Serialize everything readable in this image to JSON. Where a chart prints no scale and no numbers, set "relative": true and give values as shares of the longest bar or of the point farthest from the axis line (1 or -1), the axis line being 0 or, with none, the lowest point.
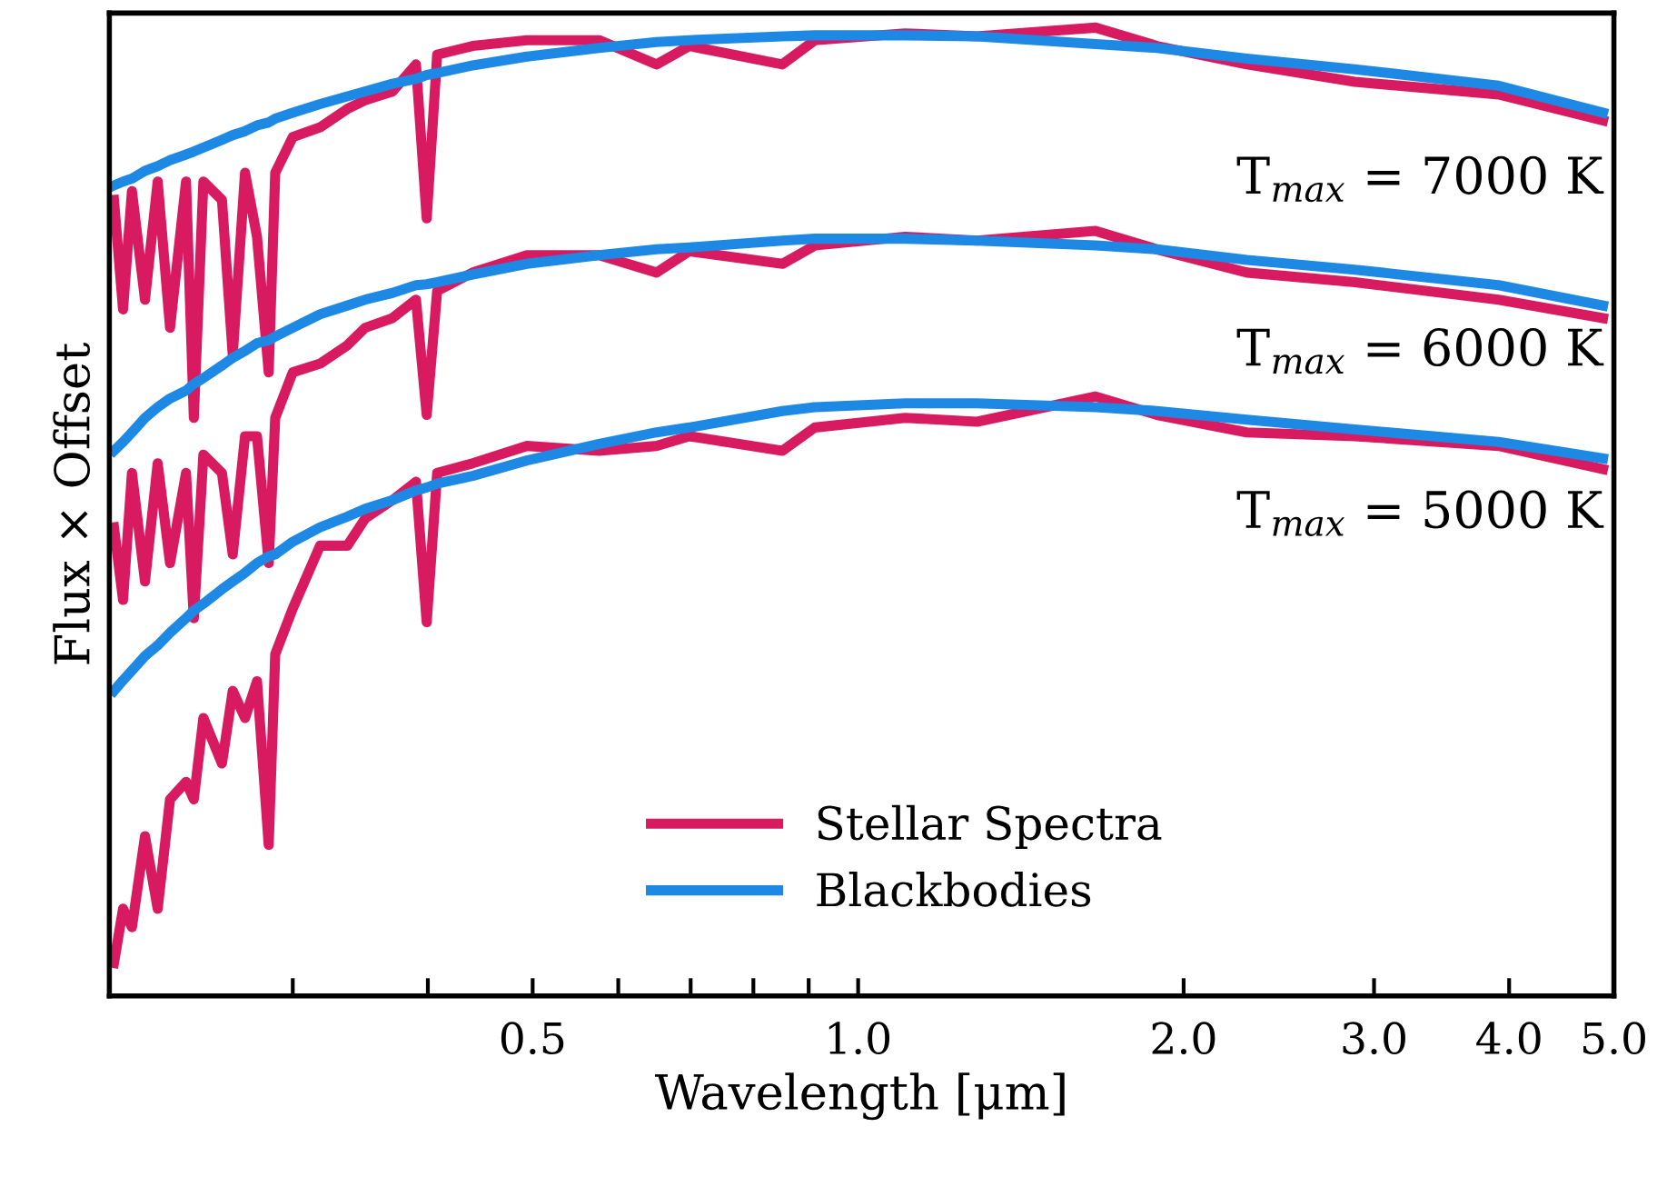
{
  "chart_data": {
    "type": "line",
    "relative": true,
    "xlabel": "Wavelength [μm]",
    "ylabel": "Flux × Offset",
    "log": "x",
    "grid": false,
    "legend": "bottom",
    "tick_labels": "x",
    "line_style": "solid",
    "marker": "none",
    "xlim": [
      0.203,
      5.0
    ],
    "xticks": [
      {
        "value": 0.3,
        "label": null
      },
      {
        "value": 0.4,
        "label": null
      },
      0.5,
      {
        "value": 0.6,
        "label": null
      },
      {
        "value": 0.7,
        "label": null
      },
      {
        "value": 0.8,
        "label": null
      },
      {
        "value": 0.9,
        "label": null
      },
      {
        "value": 1,
        "label": "1.0"
      },
      {
        "value": 2,
        "label": "2.0"
      },
      {
        "value": 3,
        "label": "3.0"
      },
      {
        "value": 4,
        "label": "4.0"
      },
      {
        "value": 5,
        "label": "5.0"
      }
    ],
    "annotations": [
      "T$_{max}$ = 7000 K",
      "T$_{max}$ = 6000 K",
      "T$_{max}$ = 5000 K"
    ],
    "x": [
      0.205,
      0.209,
      0.213,
      0.219,
      0.225,
      0.231,
      0.239,
      0.243,
      0.248,
      0.258,
      0.264,
      0.271,
      0.278,
      0.285,
      0.289,
      0.3,
      0.318,
      0.337,
      0.35,
      0.371,
      0.39,
      0.399,
      0.408,
      0.44,
      0.494,
      0.576,
      0.651,
      0.698,
      0.851,
      0.912,
      1.105,
      1.288,
      1.658,
      1.889,
      2.288,
      2.879,
      3.911,
      4.885
    ],
    "series": [
      {
        "name": "Stellar Spectra",
        "color": "#d81b60",
        "values": [
          0.822,
          0.709,
          0.831,
          0.719,
          0.841,
          0.69,
          0.841,
          0.597,
          0.841,
          0.822,
          0.662,
          0.85,
          0.784,
          0.644,
          0.85,
          0.887,
          0.897,
          0.916,
          0.925,
          0.934,
          0.962,
          0.803,
          0.972,
          0.981,
          0.987,
          0.987,
          0.962,
          0.981,
          0.962,
          0.987,
          0.994,
          0.991,
          1.0,
          0.981,
          0.962,
          0.944,
          0.931,
          0.904
        ]
      },
      {
        "color": "#d81b60",
        "values": [
          0.484,
          0.409,
          0.54,
          0.428,
          0.55,
          0.447,
          0.54,
          0.39,
          0.559,
          0.54,
          0.456,
          0.578,
          0.578,
          0.447,
          0.597,
          0.644,
          0.653,
          0.672,
          0.69,
          0.7,
          0.719,
          0.6,
          0.728,
          0.747,
          0.765,
          0.765,
          0.747,
          0.769,
          0.756,
          0.775,
          0.784,
          0.78,
          0.79,
          0.771,
          0.747,
          0.737,
          0.719,
          0.7
        ]
      },
      {
        "color": "#d81b60",
        "values": [
          0.034,
          0.09,
          0.071,
          0.165,
          0.09,
          0.203,
          0.221,
          0.203,
          0.287,
          0.24,
          0.315,
          0.287,
          0.325,
          0.156,
          0.353,
          0.4,
          0.465,
          0.465,
          0.493,
          0.512,
          0.531,
          0.386,
          0.54,
          0.55,
          0.568,
          0.563,
          0.568,
          0.578,
          0.563,
          0.587,
          0.597,
          0.593,
          0.619,
          0.6,
          0.582,
          0.578,
          0.568,
          0.544
        ]
      },
      {
        "name": "Blackbodies",
        "color": "#1e88e5",
        "values": [
          0.837,
          0.841,
          0.844,
          0.852,
          0.857,
          0.863,
          0.869,
          0.872,
          0.876,
          0.884,
          0.889,
          0.893,
          0.899,
          0.902,
          0.906,
          0.912,
          0.921,
          0.929,
          0.934,
          0.942,
          0.947,
          0.951,
          0.953,
          0.961,
          0.97,
          0.979,
          0.985,
          0.987,
          0.991,
          0.992,
          0.992,
          0.991,
          0.983,
          0.979,
          0.968,
          0.957,
          0.94,
          0.912
        ]
      },
      {
        "color": "#1e88e5",
        "values": [
          0.563,
          0.572,
          0.582,
          0.597,
          0.608,
          0.617,
          0.625,
          0.632,
          0.638,
          0.651,
          0.659,
          0.666,
          0.674,
          0.677,
          0.681,
          0.69,
          0.704,
          0.713,
          0.719,
          0.726,
          0.734,
          0.735,
          0.737,
          0.745,
          0.756,
          0.765,
          0.771,
          0.773,
          0.78,
          0.782,
          0.782,
          0.78,
          0.775,
          0.771,
          0.76,
          0.75,
          0.734,
          0.713
        ]
      },
      {
        "color": "#1e88e5",
        "values": [
          0.315,
          0.326,
          0.336,
          0.351,
          0.362,
          0.375,
          0.39,
          0.398,
          0.405,
          0.42,
          0.428,
          0.437,
          0.447,
          0.454,
          0.456,
          0.469,
          0.484,
          0.495,
          0.503,
          0.512,
          0.522,
          0.525,
          0.529,
          0.537,
          0.553,
          0.57,
          0.582,
          0.587,
          0.604,
          0.608,
          0.612,
          0.612,
          0.608,
          0.604,
          0.595,
          0.585,
          0.572,
          0.555
        ]
      }
    ]
  }
}
